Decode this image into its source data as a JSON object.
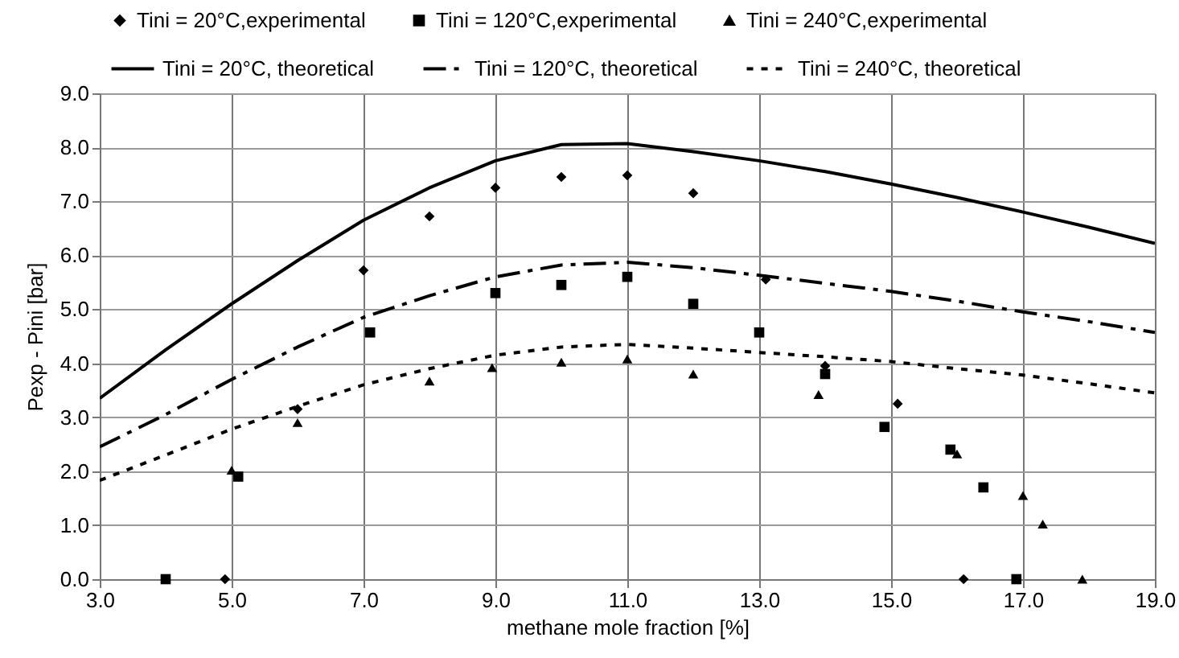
{
  "chart_data": {
    "type": "scatter",
    "xlabel": "methane mole fraction [%]",
    "ylabel": "Pexp - Pini [bar]",
    "xlim": [
      3,
      19
    ],
    "ylim": [
      0,
      9
    ],
    "xticks": [
      {
        "value": 3,
        "label": "3.0"
      },
      {
        "value": 5,
        "label": "5.0"
      },
      {
        "value": 7,
        "label": "7.0"
      },
      {
        "value": 9,
        "label": "9.0"
      },
      {
        "value": 11,
        "label": "11.0"
      },
      {
        "value": 13,
        "label": "13.0"
      },
      {
        "value": 15,
        "label": "15.0"
      },
      {
        "value": 17,
        "label": "17.0"
      },
      {
        "value": 19,
        "label": "19.0"
      }
    ],
    "yticks": [
      {
        "value": 0,
        "label": "0.0"
      },
      {
        "value": 1,
        "label": "1.0"
      },
      {
        "value": 2,
        "label": "2.0"
      },
      {
        "value": 3,
        "label": "3.0"
      },
      {
        "value": 4,
        "label": "4.0"
      },
      {
        "value": 5,
        "label": "5.0"
      },
      {
        "value": 6,
        "label": "6.0"
      },
      {
        "value": 7,
        "label": "7.0"
      },
      {
        "value": 8,
        "label": "8.0"
      },
      {
        "value": 9,
        "label": "9.0"
      }
    ],
    "grid": true,
    "legend": "top",
    "series": [
      {
        "name": "Tini = 20°C,experimental",
        "type": "scatter",
        "marker": "diamond",
        "color": "#000000",
        "x": [
          4.9,
          6.0,
          7.0,
          8.0,
          9.0,
          10.0,
          11.0,
          12.0,
          13.1,
          14.0,
          15.1,
          16.1
        ],
        "values": [
          0,
          3.15,
          5.72,
          6.72,
          7.25,
          7.45,
          7.48,
          7.15,
          5.55,
          3.95,
          3.25,
          0
        ]
      },
      {
        "name": "Tini = 120°C,experimental",
        "type": "scatter",
        "marker": "square",
        "color": "#000000",
        "x": [
          4.0,
          5.1,
          7.1,
          9.0,
          10.0,
          11.0,
          12.0,
          13.0,
          14.0,
          14.9,
          15.9,
          16.4,
          16.9
        ],
        "values": [
          0,
          1.9,
          4.57,
          5.3,
          5.45,
          5.6,
          5.1,
          4.57,
          3.8,
          2.82,
          2.4,
          1.7,
          0
        ]
      },
      {
        "name": "Tini = 240°C,experimental",
        "type": "scatter",
        "marker": "triangle",
        "color": "#000000",
        "x": [
          5.0,
          6.0,
          8.0,
          8.95,
          10.0,
          11.0,
          12.0,
          13.9,
          16.0,
          17.0,
          17.3,
          17.9
        ],
        "values": [
          2.02,
          2.9,
          3.67,
          3.92,
          4.02,
          4.08,
          3.8,
          3.42,
          2.32,
          1.55,
          1.02,
          0
        ]
      },
      {
        "name": "Tini = 20°C, theoretical",
        "type": "line",
        "line_style": "solid",
        "color": "#000000",
        "x": [
          3,
          4,
          5,
          6,
          7,
          8,
          9,
          10,
          11,
          12,
          13,
          14,
          15,
          16,
          17,
          18,
          19
        ],
        "values": [
          3.35,
          4.25,
          5.1,
          5.9,
          6.65,
          7.25,
          7.75,
          8.05,
          8.07,
          7.92,
          7.75,
          7.55,
          7.32,
          7.07,
          6.8,
          6.52,
          6.22
        ]
      },
      {
        "name": "Tini = 120°C, theoretical",
        "type": "line",
        "line_style": "dashed",
        "color": "#000000",
        "x": [
          3,
          4,
          5,
          6,
          7,
          8,
          9,
          10,
          11,
          12,
          13,
          14,
          15,
          16,
          17,
          18,
          19
        ],
        "values": [
          2.45,
          3.05,
          3.7,
          4.3,
          4.85,
          5.25,
          5.6,
          5.82,
          5.87,
          5.77,
          5.63,
          5.48,
          5.33,
          5.15,
          4.95,
          4.77,
          4.57
        ]
      },
      {
        "name": "Tini = 240°C, theoretical",
        "type": "line",
        "line_style": "dotted",
        "color": "#000000",
        "x": [
          3,
          4,
          5,
          6,
          7,
          8,
          9,
          10,
          11,
          12,
          13,
          14,
          15,
          16,
          17,
          18,
          19
        ],
        "values": [
          1.83,
          2.3,
          2.78,
          3.2,
          3.6,
          3.9,
          4.15,
          4.3,
          4.35,
          4.28,
          4.2,
          4.12,
          4.03,
          3.9,
          3.78,
          3.62,
          3.45
        ]
      }
    ]
  }
}
